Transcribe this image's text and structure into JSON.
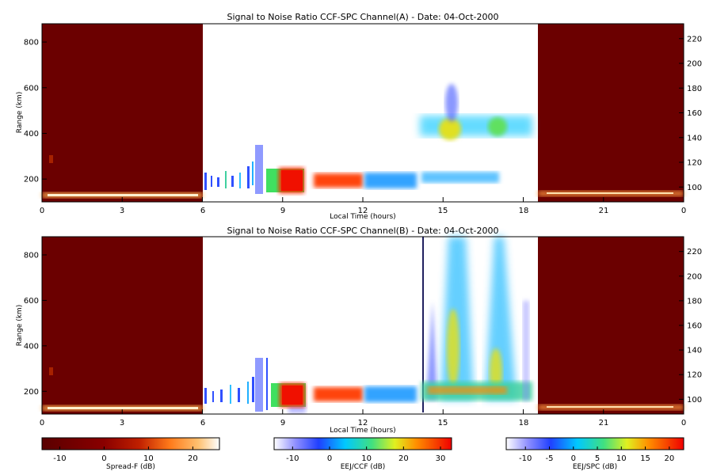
{
  "chart_data": [
    {
      "type": "heatmap",
      "title": "Signal to Noise Ratio CCF-SPC Channel(A) - Date: 04-Oct-2000",
      "xlabel": "Local Time (hours)",
      "ylabel": "Range (km)",
      "x_ticks": [
        "0",
        "3",
        "6",
        "9",
        "12",
        "15",
        "18",
        "21",
        "0"
      ],
      "x_tick_values": [
        0,
        3,
        6,
        9,
        12,
        15,
        18,
        21,
        24
      ],
      "y_ticks_left": [
        200,
        400,
        600,
        800
      ],
      "y_ticks_right": [
        100,
        120,
        140,
        160,
        180,
        200,
        220
      ],
      "xlim": [
        0,
        24
      ],
      "ylim_left": [
        100,
        880
      ],
      "ylim_right": [
        88,
        232
      ],
      "regions": [
        {
          "name": "Spread-F",
          "x_range": [
            0,
            6
          ],
          "colorbar": 0
        },
        {
          "name": "EEJ/CCF",
          "x_range": [
            6,
            14
          ],
          "colorbar": 1
        },
        {
          "name": "EEJ/SPC",
          "x_range": [
            14.1,
            18.6
          ],
          "colorbar": 2
        },
        {
          "name": "Spread-F",
          "x_range": [
            18.6,
            24
          ],
          "colorbar": 0
        }
      ]
    },
    {
      "type": "heatmap",
      "title": "Signal to Noise Ratio CCF-SPC Channel(B) - Date: 04-Oct-2000",
      "xlabel": "Local Time (hours)",
      "ylabel": "Range (km)",
      "x_ticks": [
        "0",
        "3",
        "6",
        "9",
        "12",
        "15",
        "18",
        "21",
        "0"
      ],
      "x_tick_values": [
        0,
        3,
        6,
        9,
        12,
        15,
        18,
        21,
        24
      ],
      "y_ticks_left": [
        200,
        400,
        600,
        800
      ],
      "y_ticks_right": [
        100,
        120,
        140,
        160,
        180,
        200,
        220
      ],
      "xlim": [
        0,
        24
      ],
      "ylim_left": [
        100,
        880
      ],
      "ylim_right": [
        88,
        232
      ],
      "regions": [
        {
          "name": "Spread-F",
          "x_range": [
            0,
            6
          ],
          "colorbar": 0
        },
        {
          "name": "EEJ/CCF",
          "x_range": [
            6,
            14
          ],
          "colorbar": 1
        },
        {
          "name": "EEJ/SPC",
          "x_range": [
            14.1,
            18.6
          ],
          "colorbar": 2
        },
        {
          "name": "Spread-F",
          "x_range": [
            18.6,
            24
          ],
          "colorbar": 0
        }
      ]
    }
  ],
  "colorbars": [
    {
      "label": "Spread-F (dB)",
      "ticks": [
        "-10",
        "0",
        "10",
        "20"
      ],
      "range": [
        -14,
        26
      ],
      "palette": "heat"
    },
    {
      "label": "EEJ/CCF (dB)",
      "ticks": [
        "-10",
        "0",
        "10",
        "20",
        "30"
      ],
      "range": [
        -15,
        33
      ],
      "palette": "rainbow"
    },
    {
      "label": "EEJ/SPC (dB)",
      "ticks": [
        "-10",
        "-5",
        "0",
        "5",
        "10",
        "15",
        "20"
      ],
      "range": [
        -14,
        23
      ],
      "palette": "rainbow"
    }
  ],
  "colors": {
    "spread_f_background": "#6b0000",
    "axis": "#000000"
  }
}
